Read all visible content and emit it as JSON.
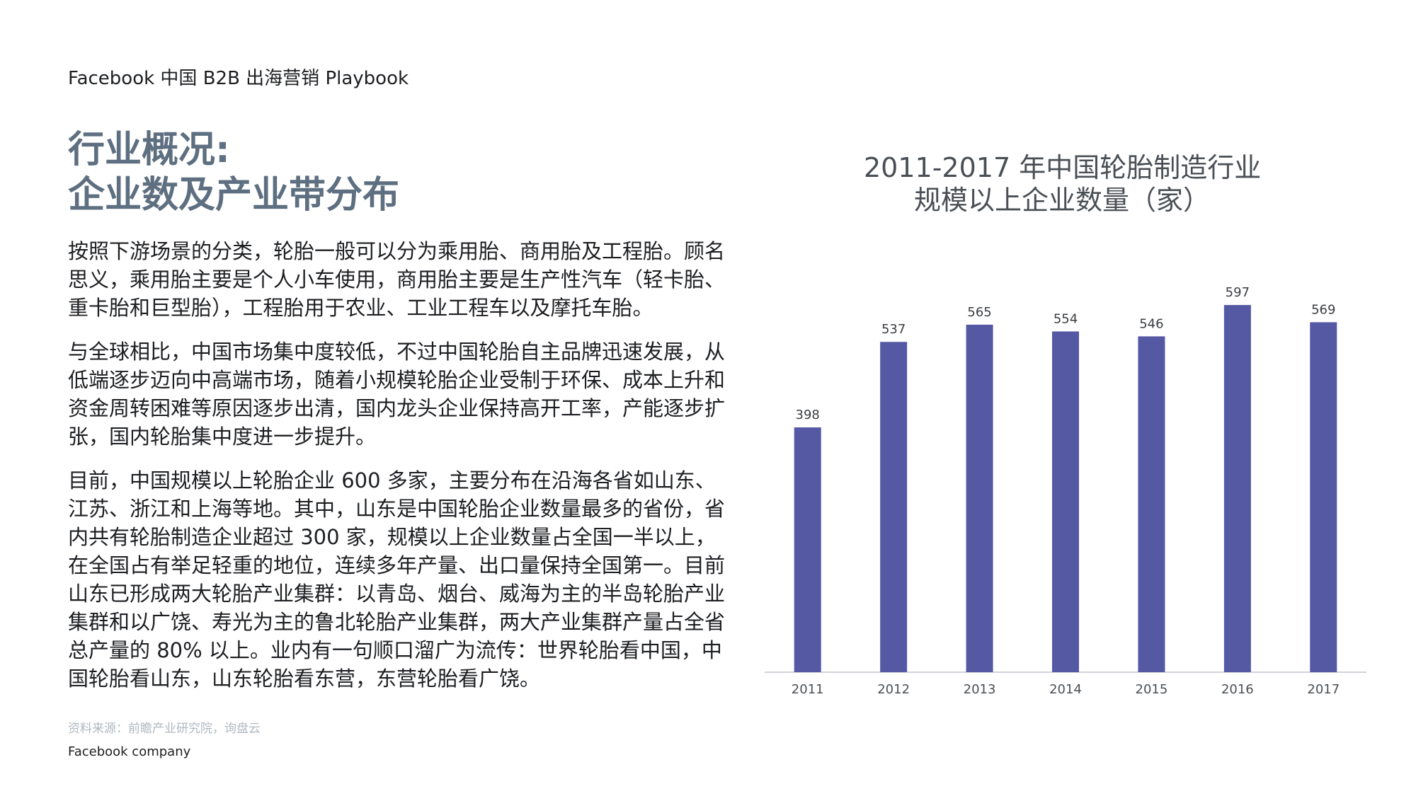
{
  "header": {
    "text": "Facebook 中国 B2B 出海营销 Playbook"
  },
  "title": {
    "line1": "行业概况:",
    "line2": "企业数及产业带分布"
  },
  "body": {
    "p1": "按照下游场景的分类，轮胎一般可以分为乘用胎、商用胎及工程胎。顾名思义，乘用胎主要是个人小车使用，商用胎主要是生产性汽车（轻卡胎、重卡胎和巨型胎），工程胎用于农业、工业工程车以及摩托车胎。",
    "p2": "与全球相比，中国市场集中度较低，不过中国轮胎自主品牌迅速发展，从低端逐步迈向中高端市场，随着小规模轮胎企业受制于环保、成本上升和资金周转困难等原因逐步出清，国内龙头企业保持高开工率，产能逐步扩张，国内轮胎集中度进一步提升。",
    "p3": "目前，中国规模以上轮胎企业 600 多家，主要分布在沿海各省如山东、江苏、浙江和上海等地。其中，山东是中国轮胎企业数量最多的省份，省内共有轮胎制造企业超过 300 家，规模以上企业数量占全国一半以上，在全国占有举足轻重的地位，连续多年产量、出口量保持全国第一。目前山东已形成两大轮胎产业集群：以青岛、烟台、威海为主的半岛轮胎产业集群和以广饶、寿光为主的鲁北轮胎产业集群，两大产业集群产量占全省总产量的 80% 以上。业内有一句顺口溜广为流传：世界轮胎看中国，中国轮胎看山东，山东轮胎看东营，东营轮胎看广饶。"
  },
  "source": "资料来源：前瞻产业研究院，询盘云",
  "footer": "Facebook company",
  "colors": {
    "bar": "#5558a3",
    "title": "#5d6f80",
    "axis": "#d0d3d8"
  },
  "chart_data": {
    "type": "bar",
    "title_line1": "2011-2017 年中国轮胎制造行业",
    "title_line2": "规模以上企业数量（家）",
    "categories": [
      "2011",
      "2012",
      "2013",
      "2014",
      "2015",
      "2016",
      "2017"
    ],
    "values": [
      398,
      537,
      565,
      554,
      546,
      597,
      569
    ],
    "ylim": [
      0,
      650
    ],
    "grid": false,
    "data_labels": true
  }
}
